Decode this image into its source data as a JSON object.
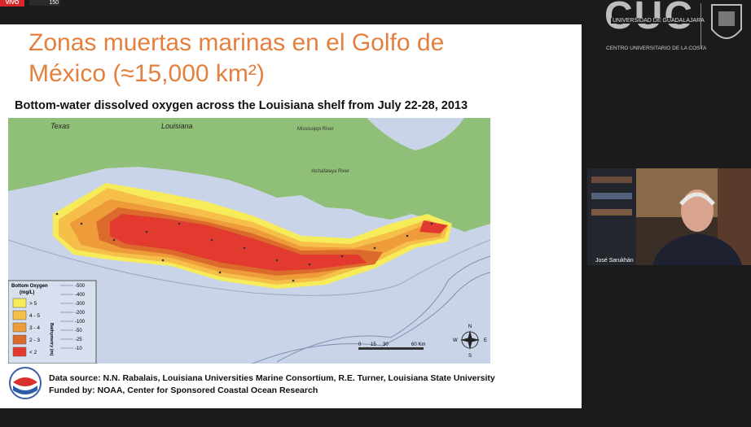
{
  "stream": {
    "live_badge": "VIVO",
    "viewers": "150"
  },
  "logo": {
    "acronym": "CUC",
    "university": "UNIVERSIDAD DE GUADALAJARA",
    "center": "CENTRO UNIVERSITARIO DE LA COSTA"
  },
  "slide": {
    "title_lines": [
      "Zonas muertas marinas en el Golfo de",
      "México (≈15,000 km²)"
    ],
    "subtitle": "Bottom-water dissolved oxygen across the Louisiana shelf from July 22-28, 2013",
    "map": {
      "place_labels": [
        "Texas",
        "Louisiana",
        "Mississippi River",
        "Atchafalaya River"
      ],
      "legend": {
        "title": "Bottom Oxygen",
        "unit": "(mg/L)",
        "classes": [
          "> 5",
          "4 - 5",
          "3 - 4",
          "2 - 3",
          "< 2"
        ],
        "bathymetry_title": "Bathymetry (m)",
        "bathymetry": [
          -500,
          -400,
          -300,
          -200,
          -100,
          -50,
          -25,
          -10
        ]
      },
      "scale": [
        "0",
        "15",
        "30",
        "60 Km"
      ],
      "compass": [
        "N",
        "E",
        "S",
        "W"
      ]
    },
    "credits": [
      "Data source: N.N. Rabalais, Louisiana Universities Marine Consortium, R.E. Turner, Louisiana State University",
      "Funded by: NOAA, Center for Sponsored Coastal Ocean Research"
    ]
  },
  "participant": {
    "name": "José Sarukhán"
  }
}
